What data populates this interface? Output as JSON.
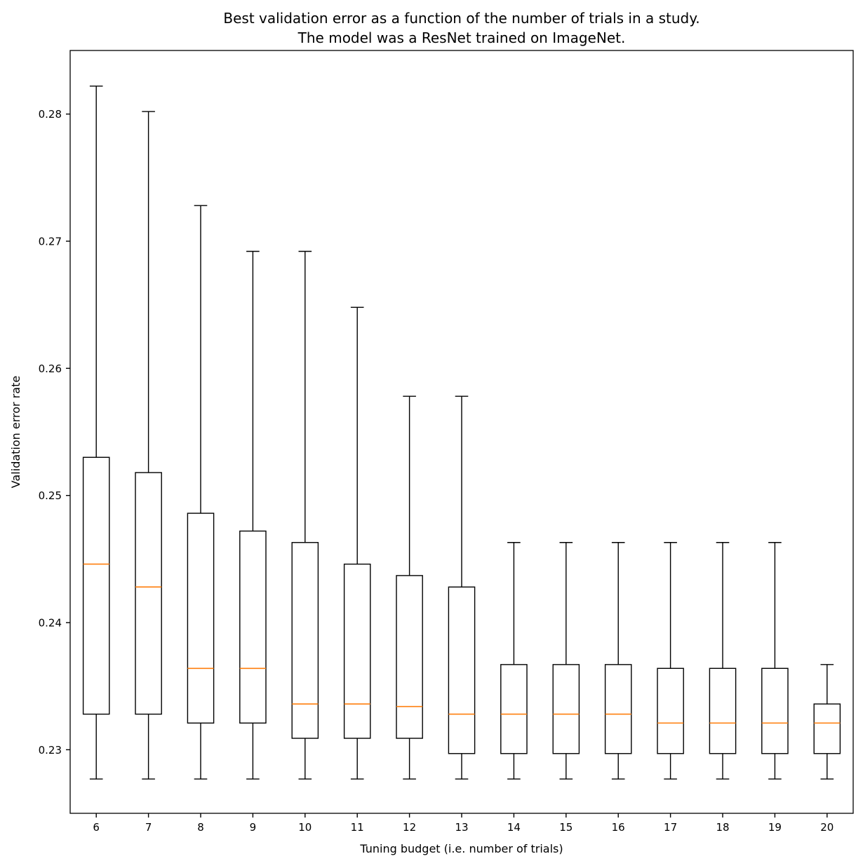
{
  "chart_data": {
    "type": "box",
    "title": "Best validation error as a function of the number of trials in a study.",
    "subtitle": "The model was a ResNet trained on ImageNet.",
    "xlabel": "Tuning budget (i.e. number of trials)",
    "ylabel": "Validation error rate",
    "ylim": [
      0.225,
      0.285
    ],
    "xlim": [
      5.5,
      20.5
    ],
    "yticks": [
      "0.23",
      "0.24",
      "0.25",
      "0.26",
      "0.27",
      "0.28"
    ],
    "grid": false,
    "colors": {
      "box": "#000000",
      "median": "#ff7f0e"
    },
    "categories": [
      "6",
      "7",
      "8",
      "9",
      "10",
      "11",
      "12",
      "13",
      "14",
      "15",
      "16",
      "17",
      "18",
      "19",
      "20"
    ],
    "boxes": [
      {
        "x": 6,
        "whislo": 0.2277,
        "q1": 0.2328,
        "med": 0.2446,
        "q3": 0.253,
        "whishi": 0.2822
      },
      {
        "x": 7,
        "whislo": 0.2277,
        "q1": 0.2328,
        "med": 0.2428,
        "q3": 0.2518,
        "whishi": 0.2802
      },
      {
        "x": 8,
        "whislo": 0.2277,
        "q1": 0.2321,
        "med": 0.2364,
        "q3": 0.2486,
        "whishi": 0.2728
      },
      {
        "x": 9,
        "whislo": 0.2277,
        "q1": 0.2321,
        "med": 0.2364,
        "q3": 0.2472,
        "whishi": 0.2692
      },
      {
        "x": 10,
        "whislo": 0.2277,
        "q1": 0.2309,
        "med": 0.2336,
        "q3": 0.2463,
        "whishi": 0.2692
      },
      {
        "x": 11,
        "whislo": 0.2277,
        "q1": 0.2309,
        "med": 0.2336,
        "q3": 0.2446,
        "whishi": 0.2648
      },
      {
        "x": 12,
        "whislo": 0.2277,
        "q1": 0.2309,
        "med": 0.2334,
        "q3": 0.2437,
        "whishi": 0.2578
      },
      {
        "x": 13,
        "whislo": 0.2277,
        "q1": 0.2297,
        "med": 0.2328,
        "q3": 0.2428,
        "whishi": 0.2578
      },
      {
        "x": 14,
        "whislo": 0.2277,
        "q1": 0.2297,
        "med": 0.2328,
        "q3": 0.2367,
        "whishi": 0.2463
      },
      {
        "x": 15,
        "whislo": 0.2277,
        "q1": 0.2297,
        "med": 0.2328,
        "q3": 0.2367,
        "whishi": 0.2463
      },
      {
        "x": 16,
        "whislo": 0.2277,
        "q1": 0.2297,
        "med": 0.2328,
        "q3": 0.2367,
        "whishi": 0.2463
      },
      {
        "x": 17,
        "whislo": 0.2277,
        "q1": 0.2297,
        "med": 0.2321,
        "q3": 0.2364,
        "whishi": 0.2463
      },
      {
        "x": 18,
        "whislo": 0.2277,
        "q1": 0.2297,
        "med": 0.2321,
        "q3": 0.2364,
        "whishi": 0.2463
      },
      {
        "x": 19,
        "whislo": 0.2277,
        "q1": 0.2297,
        "med": 0.2321,
        "q3": 0.2364,
        "whishi": 0.2463
      },
      {
        "x": 20,
        "whislo": 0.2277,
        "q1": 0.2297,
        "med": 0.2321,
        "q3": 0.2336,
        "whishi": 0.2367
      }
    ]
  }
}
